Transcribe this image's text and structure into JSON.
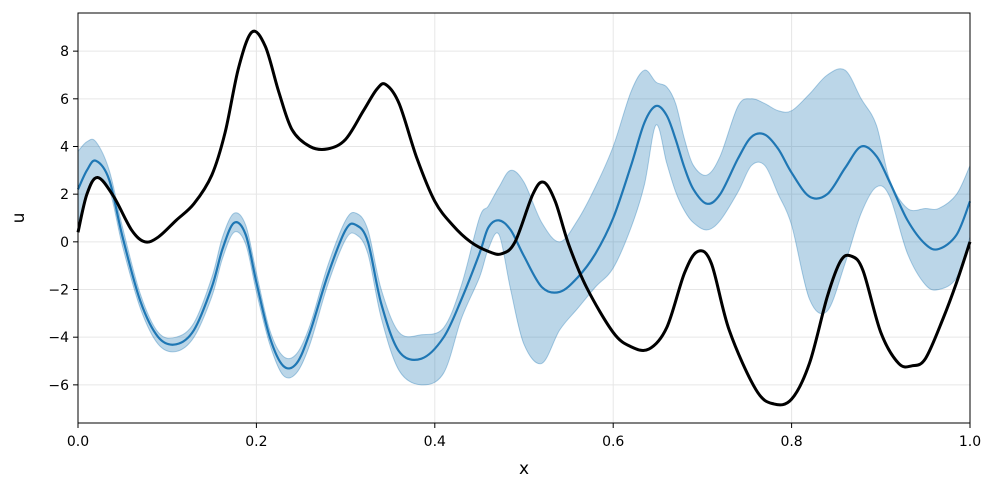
{
  "chart_data": {
    "type": "line",
    "title": "",
    "xlabel": "x",
    "ylabel": "u",
    "xlim": [
      0,
      1
    ],
    "ylim": [
      -7.6,
      9.6
    ],
    "xticks": [
      0.0,
      0.2,
      0.4,
      0.6,
      0.8,
      1.0
    ],
    "xtick_labels": [
      "0.0",
      "0.2",
      "0.4",
      "0.6",
      "0.8",
      "1.0"
    ],
    "yticks": [
      -6,
      -4,
      -2,
      0,
      2,
      4,
      6,
      8
    ],
    "ytick_labels": [
      "−6",
      "−4",
      "−2",
      "0",
      "2",
      "4",
      "6",
      "8"
    ],
    "grid": true,
    "legend": "none",
    "series": [
      {
        "role": "true-function",
        "color": "#000000",
        "x": [
          0.0,
          0.01,
          0.022,
          0.04,
          0.06,
          0.075,
          0.09,
          0.11,
          0.13,
          0.15,
          0.165,
          0.18,
          0.195,
          0.21,
          0.225,
          0.24,
          0.26,
          0.28,
          0.3,
          0.32,
          0.335,
          0.345,
          0.36,
          0.38,
          0.4,
          0.42,
          0.44,
          0.46,
          0.475,
          0.49,
          0.51,
          0.522,
          0.535,
          0.55,
          0.57,
          0.6,
          0.62,
          0.64,
          0.66,
          0.68,
          0.695,
          0.71,
          0.73,
          0.76,
          0.78,
          0.8,
          0.82,
          0.84,
          0.855,
          0.867,
          0.88,
          0.9,
          0.92,
          0.935,
          0.95,
          0.97,
          0.985,
          1.0
        ],
        "y": [
          0.4,
          2.0,
          2.7,
          1.9,
          0.5,
          0.0,
          0.2,
          0.9,
          1.6,
          2.8,
          4.6,
          7.3,
          8.8,
          8.2,
          6.3,
          4.7,
          4.0,
          3.9,
          4.3,
          5.5,
          6.4,
          6.6,
          5.8,
          3.5,
          1.7,
          0.7,
          0.0,
          -0.4,
          -0.5,
          0.0,
          2.0,
          2.5,
          1.7,
          -0.1,
          -1.9,
          -3.8,
          -4.4,
          -4.5,
          -3.6,
          -1.3,
          -0.4,
          -0.9,
          -3.7,
          -6.2,
          -6.8,
          -6.6,
          -5.1,
          -2.3,
          -0.8,
          -0.6,
          -1.2,
          -3.8,
          -5.1,
          -5.2,
          -4.9,
          -3.2,
          -1.7,
          0.0
        ]
      },
      {
        "role": "predicted-mean",
        "color": "#1f77b4",
        "x": [
          0.0,
          0.01,
          0.02,
          0.035,
          0.05,
          0.07,
          0.09,
          0.11,
          0.13,
          0.15,
          0.162,
          0.175,
          0.188,
          0.2,
          0.215,
          0.23,
          0.245,
          0.26,
          0.28,
          0.3,
          0.312,
          0.325,
          0.34,
          0.36,
          0.385,
          0.41,
          0.43,
          0.45,
          0.46,
          0.472,
          0.485,
          0.5,
          0.52,
          0.54,
          0.56,
          0.58,
          0.6,
          0.62,
          0.635,
          0.648,
          0.66,
          0.67,
          0.68,
          0.69,
          0.705,
          0.72,
          0.74,
          0.755,
          0.77,
          0.785,
          0.8,
          0.82,
          0.84,
          0.86,
          0.878,
          0.895,
          0.91,
          0.93,
          0.95,
          0.965,
          0.985,
          1.0
        ],
        "y": [
          2.2,
          3.0,
          3.4,
          2.6,
          0.2,
          -2.5,
          -4.0,
          -4.3,
          -3.7,
          -1.9,
          -0.3,
          0.8,
          0.3,
          -1.7,
          -4.0,
          -5.2,
          -5.1,
          -3.8,
          -1.4,
          0.5,
          0.7,
          0.0,
          -2.6,
          -4.6,
          -4.9,
          -4.0,
          -2.4,
          -0.5,
          0.6,
          0.9,
          0.5,
          -0.6,
          -1.9,
          -2.1,
          -1.5,
          -0.5,
          1.0,
          3.2,
          5.0,
          5.7,
          5.3,
          4.3,
          3.1,
          2.2,
          1.6,
          2.0,
          3.5,
          4.4,
          4.5,
          3.9,
          2.9,
          1.9,
          2.0,
          3.1,
          4.0,
          3.6,
          2.5,
          0.9,
          -0.1,
          -0.3,
          0.3,
          1.7
        ]
      }
    ],
    "confidence_band": {
      "color": "#1f77b4",
      "opacity": 0.3,
      "x": [
        0.0,
        0.01,
        0.02,
        0.035,
        0.05,
        0.07,
        0.09,
        0.11,
        0.13,
        0.15,
        0.162,
        0.175,
        0.188,
        0.2,
        0.215,
        0.23,
        0.245,
        0.26,
        0.28,
        0.3,
        0.312,
        0.325,
        0.34,
        0.36,
        0.385,
        0.41,
        0.43,
        0.45,
        0.46,
        0.472,
        0.485,
        0.5,
        0.52,
        0.54,
        0.56,
        0.58,
        0.6,
        0.62,
        0.635,
        0.648,
        0.66,
        0.67,
        0.68,
        0.69,
        0.705,
        0.72,
        0.74,
        0.755,
        0.77,
        0.785,
        0.8,
        0.82,
        0.84,
        0.86,
        0.878,
        0.895,
        0.91,
        0.93,
        0.95,
        0.965,
        0.985,
        1.0
      ],
      "upper": [
        3.8,
        4.2,
        4.2,
        3.0,
        0.6,
        -2.2,
        -3.8,
        -4.0,
        -3.4,
        -1.5,
        0.2,
        1.2,
        0.7,
        -1.3,
        -3.7,
        -4.8,
        -4.7,
        -3.5,
        -1.0,
        0.9,
        1.2,
        0.5,
        -2.0,
        -3.8,
        -3.9,
        -3.6,
        -1.8,
        1.0,
        1.5,
        2.3,
        3.0,
        2.5,
        0.8,
        0.0,
        0.9,
        2.3,
        4.0,
        6.3,
        7.2,
        6.7,
        6.5,
        5.8,
        4.3,
        3.2,
        2.8,
        3.6,
        5.7,
        6.0,
        5.8,
        5.5,
        5.5,
        6.2,
        7.0,
        7.2,
        6.0,
        4.9,
        2.6,
        1.4,
        1.4,
        1.4,
        2.0,
        3.2
      ],
      "lower": [
        0.8,
        2.0,
        2.7,
        2.2,
        -0.2,
        -2.8,
        -4.3,
        -4.6,
        -4.0,
        -2.3,
        -0.7,
        0.4,
        -0.1,
        -2.1,
        -4.3,
        -5.6,
        -5.5,
        -4.3,
        -1.8,
        0.1,
        0.3,
        -0.5,
        -3.2,
        -5.4,
        -6.0,
        -5.5,
        -3.2,
        -1.5,
        -0.3,
        0.3,
        -2.0,
        -4.3,
        -5.1,
        -3.7,
        -2.8,
        -1.9,
        -1.1,
        0.6,
        2.4,
        4.9,
        3.3,
        2.1,
        1.3,
        0.8,
        0.5,
        0.9,
        2.1,
        3.2,
        3.2,
        2.0,
        0.7,
        -2.4,
        -2.9,
        -0.9,
        1.2,
        2.3,
        1.9,
        -0.5,
        -1.8,
        -2.0,
        -1.5,
        0.2
      ]
    }
  }
}
